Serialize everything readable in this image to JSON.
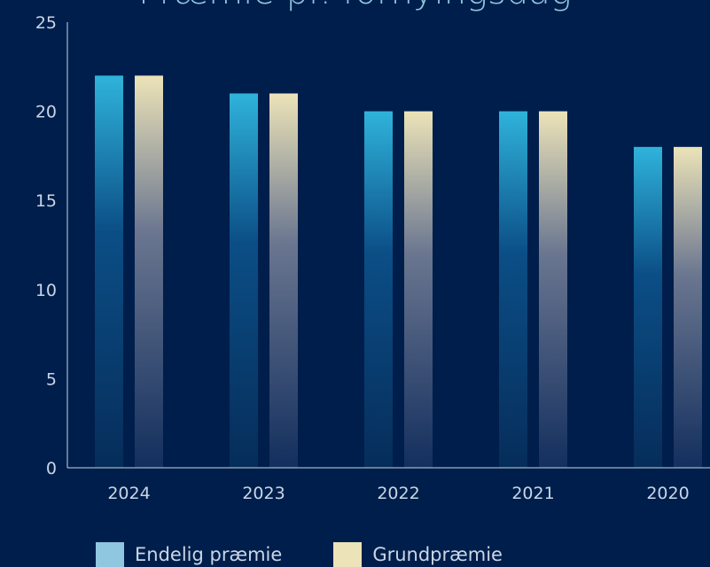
{
  "chart_data": {
    "type": "bar",
    "title": "Præmie pr. fornyingsdag",
    "categories": [
      "2024",
      "2023",
      "2022",
      "2021",
      "2020"
    ],
    "series": [
      {
        "name": "Endelig præmie",
        "values": [
          22,
          21,
          20,
          20,
          18
        ],
        "color": "#2fb3db"
      },
      {
        "name": "Grundpræmie",
        "values": [
          22,
          21,
          20,
          20,
          18
        ],
        "color": "#ece3b8"
      }
    ],
    "yticks": [
      "0",
      "5",
      "10",
      "15",
      "20",
      "25"
    ],
    "ylim": [
      0,
      25
    ],
    "grid": false,
    "legend_position": "bottom-left"
  },
  "colors": {
    "background": "#001e4b",
    "axis": "#c9d6e6"
  }
}
